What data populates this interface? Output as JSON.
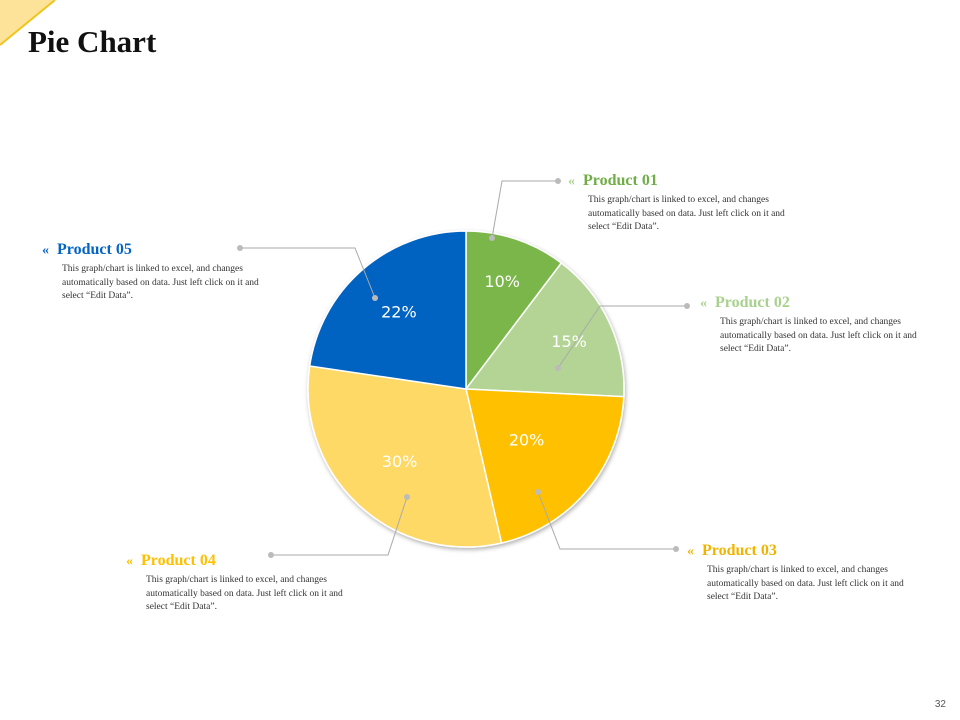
{
  "title": "Pie Chart",
  "page_number": "32",
  "chart_data": {
    "type": "pie",
    "title": "Pie Chart",
    "categories": [
      "Product 01",
      "Product 02",
      "Product 03",
      "Product 04",
      "Product 05"
    ],
    "values": [
      10,
      15,
      20,
      30,
      22
    ],
    "value_labels": [
      "10%",
      "15%",
      "20%",
      "30%",
      "22%"
    ],
    "colors": [
      "#7ab648",
      "#b3d494",
      "#ffc000",
      "#ffd966",
      "#0563c1"
    ],
    "start": "top",
    "direction": "clockwise"
  },
  "products": [
    {
      "name": "Product 01",
      "color": "#70ad47",
      "desc": "This graph/chart is linked to excel, and changes automatically based on data. Just left click on it and select “Edit Data”."
    },
    {
      "name": "Product 02",
      "color": "#a9d18e",
      "desc": "This graph/chart is linked to excel, and changes automatically based on data. Just left click on it and select “Edit Data”."
    },
    {
      "name": "Product 03",
      "color": "#f0b400",
      "desc": "This graph/chart is linked to excel, and changes automatically based on data. Just left click on it and select “Edit Data”."
    },
    {
      "name": "Product 04",
      "color": "#ffc000",
      "desc": "This graph/chart is linked to excel, and changes automatically based on data. Just left click on it and select “Edit Data”."
    },
    {
      "name": "Product 05",
      "color": "#0563c1",
      "desc": "This graph/chart is linked to excel, and changes automatically based on data. Just left click on it and select “Edit Data”."
    }
  ],
  "chevron": "«"
}
